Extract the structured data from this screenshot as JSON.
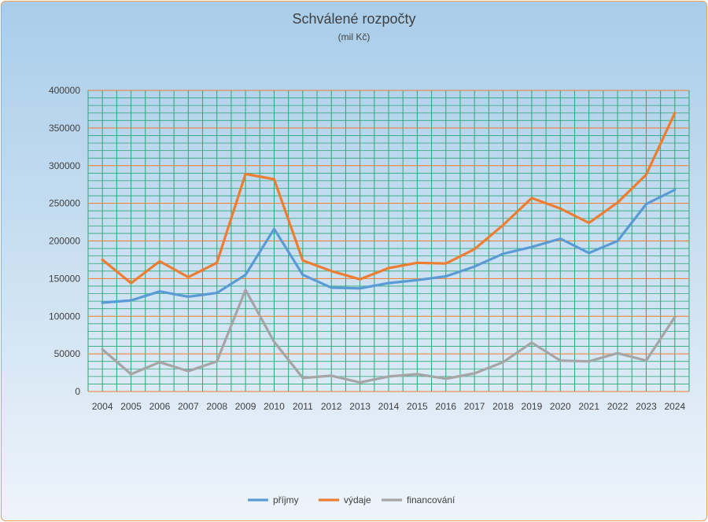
{
  "chart_data": {
    "type": "line",
    "title": "Schválené rozpočty",
    "subtitle": "(mil Kč)",
    "xlabel": "",
    "ylabel": "",
    "ylim": [
      0,
      400000
    ],
    "y_major_step": 50000,
    "y_minor_step": 10000,
    "grid": true,
    "legend_position": "bottom",
    "categories": [
      "2004",
      "2005",
      "2006",
      "2007",
      "2008",
      "2009",
      "2010",
      "2011",
      "2012",
      "2013",
      "2014",
      "2015",
      "2016",
      "2017",
      "2018",
      "2019",
      "2020",
      "2021",
      "2022",
      "2023",
      "2024"
    ],
    "y_tick_labels": [
      "0",
      "50000",
      "100000",
      "150000",
      "200000",
      "250000",
      "300000",
      "350000",
      "400000"
    ],
    "series": [
      {
        "name": "příjmy",
        "color": "#5b9bd5",
        "values": [
          118000,
          121000,
          133000,
          126000,
          131000,
          155000,
          216000,
          155000,
          138000,
          137000,
          144000,
          148000,
          153000,
          166000,
          183000,
          192000,
          203000,
          184000,
          200000,
          249000,
          268000
        ]
      },
      {
        "name": "výdaje",
        "color": "#ed7d31",
        "values": [
          175000,
          144000,
          173000,
          152000,
          171000,
          289000,
          282000,
          174000,
          160000,
          149000,
          164000,
          171000,
          170000,
          189000,
          221000,
          257000,
          243000,
          224000,
          251000,
          288000,
          370000
        ]
      },
      {
        "name": "financování",
        "color": "#a5a5a5",
        "values": [
          56000,
          23000,
          39000,
          27000,
          40000,
          135000,
          66000,
          18000,
          21000,
          12000,
          20000,
          23000,
          17000,
          24000,
          39000,
          65000,
          41000,
          40000,
          51000,
          41000,
          99000
        ]
      }
    ]
  },
  "colors": {
    "vertical_grid": "#2aa876",
    "minor_grid": "#2aa876",
    "major_grid": "#ed7d31",
    "frame_border": "#e8a060"
  }
}
